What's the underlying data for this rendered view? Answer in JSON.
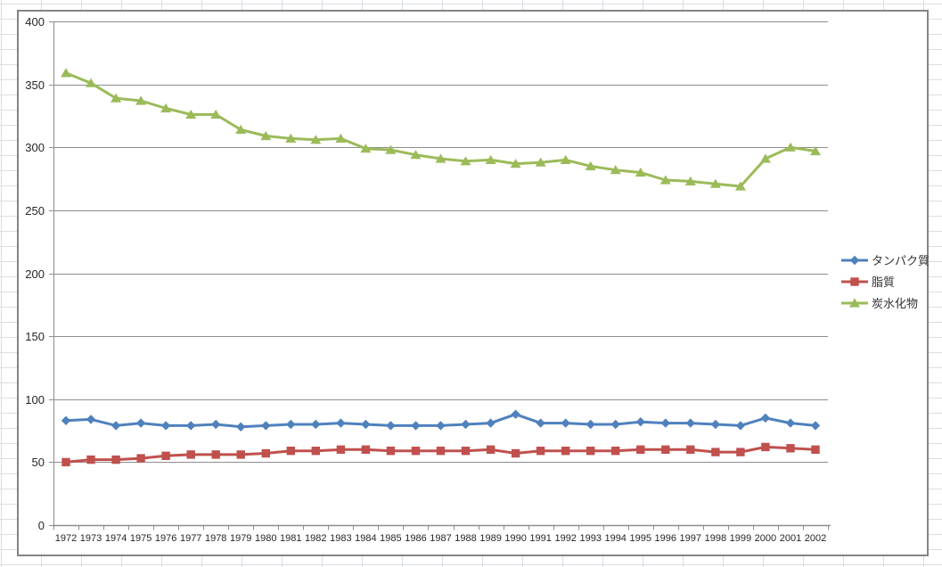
{
  "chart_data": {
    "type": "line",
    "title": "",
    "categories": [
      "1972",
      "1973",
      "1974",
      "1975",
      "1976",
      "1977",
      "1978",
      "1979",
      "1980",
      "1981",
      "1982",
      "1983",
      "1984",
      "1985",
      "1986",
      "1987",
      "1988",
      "1989",
      "1990",
      "1991",
      "1992",
      "1993",
      "1994",
      "1995",
      "1996",
      "1997",
      "1998",
      "1999",
      "2000",
      "2001",
      "2002"
    ],
    "series": [
      {
        "name": "タンパク質",
        "color": "#4F81BD",
        "marker": "diamond",
        "values": [
          83,
          84,
          79,
          81,
          79,
          79,
          80,
          78,
          79,
          80,
          80,
          81,
          80,
          79,
          79,
          79,
          80,
          81,
          88,
          81,
          81,
          80,
          80,
          82,
          81,
          81,
          80,
          79,
          85,
          81,
          79
        ]
      },
      {
        "name": "脂質",
        "color": "#C0504D",
        "marker": "square",
        "values": [
          50,
          52,
          52,
          53,
          55,
          56,
          56,
          56,
          57,
          59,
          59,
          60,
          60,
          59,
          59,
          59,
          59,
          60,
          57,
          59,
          59,
          59,
          59,
          60,
          60,
          60,
          58,
          58,
          62,
          61,
          60
        ]
      },
      {
        "name": "炭水化物",
        "color": "#9BBB59",
        "marker": "triangle",
        "values": [
          359,
          351,
          339,
          337,
          331,
          326,
          326,
          314,
          309,
          307,
          306,
          307,
          299,
          298,
          294,
          291,
          289,
          290,
          287,
          288,
          290,
          285,
          282,
          280,
          274,
          273,
          271,
          269,
          291,
          300,
          297
        ]
      }
    ],
    "y_axis": {
      "min": 0,
      "max": 400,
      "tick_interval": 50,
      "ticks": [
        0,
        50,
        100,
        150,
        200,
        250,
        300,
        350,
        400
      ]
    },
    "grid": true,
    "legend_position": "right",
    "colors": {
      "gridline": "#8E8E8E",
      "axis": "#8E8E8E",
      "tick_label": "#262626",
      "legend_text": "#333333",
      "chart_border": "#848484",
      "sheet_gridline": "#D9DEE4"
    }
  }
}
